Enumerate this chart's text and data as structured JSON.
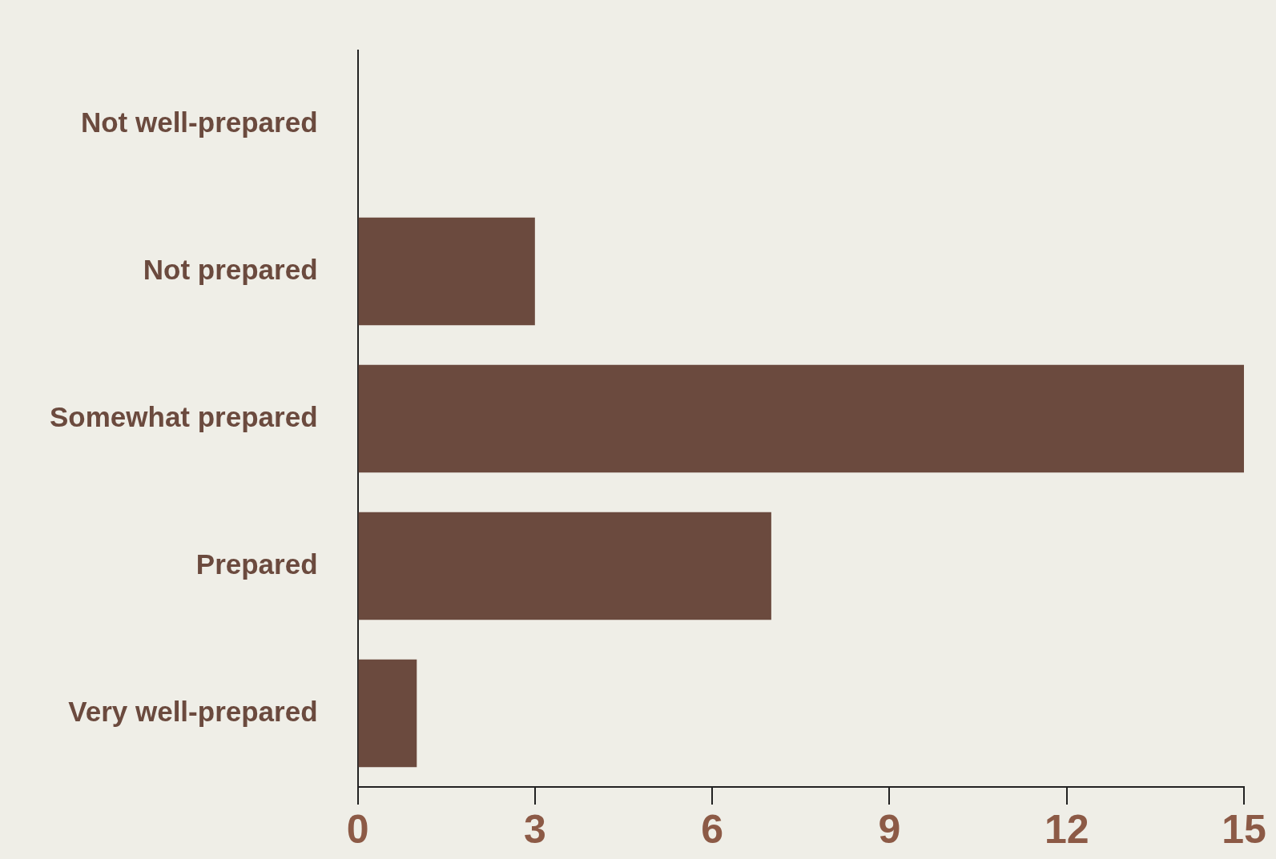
{
  "chart_data": {
    "type": "bar",
    "orientation": "horizontal",
    "categories": [
      "Not well-prepared",
      "Not prepared",
      "Somewhat prepared",
      "Prepared",
      "Very well-prepared"
    ],
    "values": [
      0,
      3,
      15,
      7,
      1
    ],
    "color": "#6b4a3e",
    "xlim": [
      0,
      15
    ],
    "xticks": [
      0,
      3,
      6,
      9,
      12,
      15
    ]
  }
}
